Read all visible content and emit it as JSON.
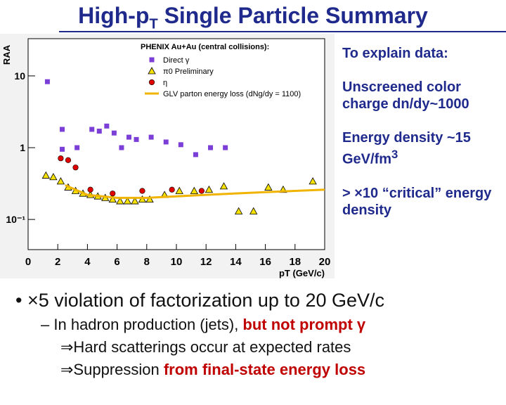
{
  "title": {
    "main": "High-p",
    "sub": "T",
    "rest": " Single Particle Summary"
  },
  "chart_data": {
    "type": "scatter",
    "y_label": "RAA",
    "x_label": "pT (GeV/c)",
    "legend_title": "PHENIX Au+Au (central collisions):",
    "xlim": [
      0,
      20
    ],
    "xticks": [
      0,
      2,
      4,
      6,
      8,
      10,
      12,
      14,
      16,
      18,
      20
    ],
    "ylim": [
      0.038,
      33
    ],
    "log_y": true,
    "yticks": [
      10,
      1,
      {
        "value": 0.1,
        "label": "10⁻¹"
      }
    ],
    "series": [
      {
        "name": "Direct γ",
        "marker": "square",
        "color": "#7b3fd8",
        "x": [
          1.3,
          2.3,
          2.3,
          3.3,
          4.3,
          4.8,
          5.3,
          5.8,
          6.3,
          6.8,
          7.3,
          8.3,
          9.3,
          10.3,
          11.3,
          12.3,
          13.3
        ],
        "values": [
          8.3,
          1.8,
          0.95,
          1.0,
          1.8,
          1.7,
          2.0,
          1.6,
          1.0,
          1.4,
          1.3,
          1.4,
          1.2,
          1.1,
          0.8,
          1.0,
          1.0
        ]
      },
      {
        "name": "π0 Preliminary",
        "marker": "triangle",
        "color": "#f5e000",
        "x": [
          1.2,
          1.7,
          2.2,
          2.7,
          3.2,
          3.7,
          4.2,
          4.7,
          5.2,
          5.7,
          6.2,
          6.7,
          7.2,
          7.7,
          8.2,
          9.2,
          10.2,
          11.2,
          12.2,
          13.2,
          14.2,
          15.2,
          16.2,
          17.2,
          19.2
        ],
        "values": [
          0.41,
          0.39,
          0.34,
          0.28,
          0.25,
          0.23,
          0.22,
          0.21,
          0.2,
          0.19,
          0.18,
          0.18,
          0.18,
          0.19,
          0.19,
          0.22,
          0.25,
          0.25,
          0.26,
          0.29,
          0.13,
          0.13,
          0.28,
          0.26,
          0.34
        ]
      },
      {
        "name": "η",
        "marker": "circle",
        "color": "#e00000",
        "x": [
          2.2,
          2.7,
          3.2,
          4.2,
          5.7,
          7.7,
          9.7,
          11.7
        ],
        "values": [
          0.71,
          0.67,
          0.53,
          0.26,
          0.23,
          0.25,
          0.26,
          0.25
        ]
      },
      {
        "name": "GLV parton energy loss (dNg/dy = 1100)",
        "marker": "line",
        "color": "#f0b400",
        "x": [
          2.5,
          4,
          6,
          8,
          10,
          12,
          14,
          16,
          18,
          20
        ],
        "values": [
          0.3,
          0.22,
          0.2,
          0.2,
          0.21,
          0.22,
          0.23,
          0.24,
          0.25,
          0.26
        ]
      }
    ]
  },
  "side_notes": [
    "To explain data:",
    "Unscreened color charge dn/dy~1000",
    {
      "text": "Energy density ~15 GeV/fm",
      "sup": "3"
    },
    "> ×10 “critical” energy density"
  ],
  "bullets": {
    "main": "• ×5 violation of factorization up to 20 GeV/c",
    "sub": {
      "marker": "–",
      "text": "In hadron production (jets), ",
      "red": "but not prompt γ"
    },
    "arrow1": "⇒Hard scatterings occur at expected rates",
    "arrow2": {
      "text": "⇒Suppression ",
      "red": "from final-state energy loss"
    }
  }
}
